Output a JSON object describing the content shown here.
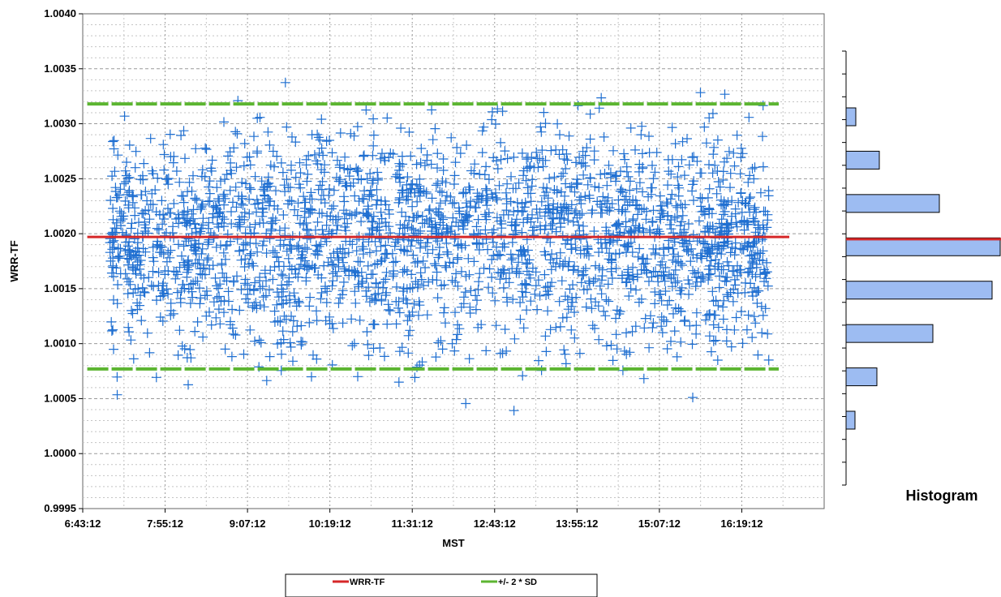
{
  "chart_data": [
    {
      "type": "scatter",
      "ylabel": "WRR-TF",
      "xlabel": "MST",
      "x_tick_labels": [
        "6:43:12",
        "7:55:12",
        "9:07:12",
        "10:19:12",
        "11:31:12",
        "12:43:12",
        "13:55:12",
        "15:07:12",
        "16:19:12"
      ],
      "y_tick_labels": [
        "0.9995",
        "1.0000",
        "1.0005",
        "1.0010",
        "1.0015",
        "1.0020",
        "1.0025",
        "1.0030",
        "1.0035",
        "1.0040"
      ],
      "xlim": [
        "6:43:12",
        "17:31:12"
      ],
      "ylim": [
        0.9995,
        1.004
      ],
      "grid": true,
      "marker": "+",
      "marker_color": "#1f6fd1",
      "x_range_of_points": [
        "7:07:00",
        "16:43:00"
      ],
      "mean": 1.00197,
      "upper_2sd": 1.00318,
      "lower_2sd": 1.00077,
      "series": [
        {
          "name": "WRR-TF",
          "color": "#d62728",
          "value": 1.00197
        },
        {
          "name": "+/- 2 * SD",
          "color": "#5cb531",
          "values": [
            1.00318,
            1.00077
          ]
        }
      ],
      "legend": {
        "placement": "bottom",
        "entries": [
          "WRR-TF",
          "+/- 2 * SD"
        ]
      }
    },
    {
      "type": "bar",
      "orientation": "horizontal",
      "title": "Histogram",
      "bins_center": [
        1.0003,
        1.0007,
        1.0011,
        1.0015,
        1.0019,
        1.0023,
        1.0027,
        1.0031
      ],
      "values": [
        11,
        38,
        107,
        180,
        190,
        115,
        41,
        12
      ],
      "bar_color": "#9dbcf2",
      "highlight_line": {
        "value": 1.00197,
        "color": "#d62728"
      }
    }
  ]
}
